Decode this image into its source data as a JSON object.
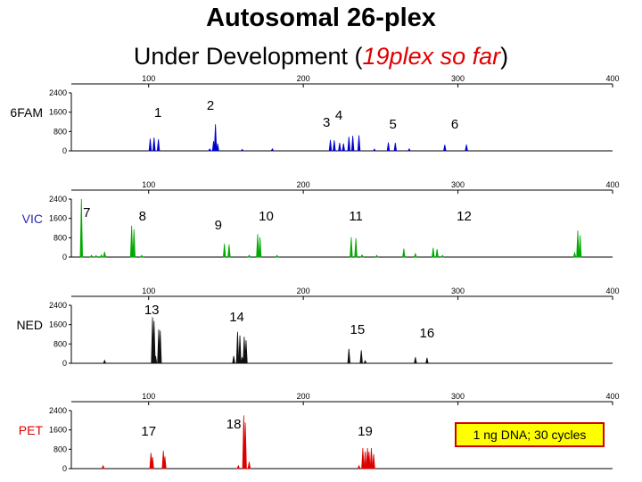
{
  "title": "Autosomal 26-plex",
  "subtitle": {
    "prefix": "Under Development (",
    "highlight": "19plex so far",
    "suffix": ")"
  },
  "note": "1 ng DNA; 30 cycles",
  "chart_data": {
    "type": "line",
    "xlim": [
      50,
      400
    ],
    "ylim": [
      0,
      2400
    ],
    "x_ticks": [
      100,
      200,
      300,
      400
    ],
    "y_ticks": [
      0,
      800,
      1600,
      2400
    ],
    "grid": false,
    "panels": [
      {
        "dye": "6FAM",
        "color": "#0000cc",
        "label_color": "#000000",
        "peaks": [
          {
            "x": 101.0,
            "h": 500
          },
          {
            "x": 103.5,
            "h": 550
          },
          {
            "x": 106.3,
            "h": 480
          },
          {
            "x": 139.5,
            "h": 80
          },
          {
            "x": 142.0,
            "h": 400
          },
          {
            "x": 143.2,
            "h": 1100
          },
          {
            "x": 144.6,
            "h": 300
          },
          {
            "x": 160.5,
            "h": 60
          },
          {
            "x": 180.0,
            "h": 80
          },
          {
            "x": 217.5,
            "h": 450
          },
          {
            "x": 220.0,
            "h": 430
          },
          {
            "x": 223.5,
            "h": 330
          },
          {
            "x": 226.0,
            "h": 300
          },
          {
            "x": 229.5,
            "h": 580
          },
          {
            "x": 232.0,
            "h": 620
          },
          {
            "x": 236.0,
            "h": 640
          },
          {
            "x": 246.0,
            "h": 70
          },
          {
            "x": 255.0,
            "h": 350
          },
          {
            "x": 259.5,
            "h": 330
          },
          {
            "x": 268.5,
            "h": 80
          },
          {
            "x": 291.5,
            "h": 250
          },
          {
            "x": 305.5,
            "h": 260
          }
        ],
        "markers": [
          {
            "label": "1",
            "x": 106
          },
          {
            "label": "2",
            "x": 140
          },
          {
            "label": "3",
            "x": 215
          },
          {
            "label": "4",
            "x": 223
          },
          {
            "label": "5",
            "x": 258
          },
          {
            "label": "6",
            "x": 298
          }
        ]
      },
      {
        "dye": "VIC",
        "color": "#00aa00",
        "label_color": "#2a2aaa",
        "peaks": [
          {
            "x": 56.5,
            "h": 2400
          },
          {
            "x": 63.0,
            "h": 70
          },
          {
            "x": 66.0,
            "h": 60
          },
          {
            "x": 69.5,
            "h": 90
          },
          {
            "x": 71.5,
            "h": 220
          },
          {
            "x": 89.0,
            "h": 1300
          },
          {
            "x": 90.5,
            "h": 1150
          },
          {
            "x": 95.5,
            "h": 70
          },
          {
            "x": 149.0,
            "h": 550
          },
          {
            "x": 152.0,
            "h": 520
          },
          {
            "x": 165.0,
            "h": 75
          },
          {
            "x": 170.5,
            "h": 950
          },
          {
            "x": 172.0,
            "h": 820
          },
          {
            "x": 183.0,
            "h": 70
          },
          {
            "x": 231.0,
            "h": 820
          },
          {
            "x": 234.0,
            "h": 780
          },
          {
            "x": 238.0,
            "h": 90
          },
          {
            "x": 247.5,
            "h": 70
          },
          {
            "x": 265.0,
            "h": 350
          },
          {
            "x": 272.5,
            "h": 140
          },
          {
            "x": 284.0,
            "h": 380
          },
          {
            "x": 286.5,
            "h": 330
          },
          {
            "x": 290.0,
            "h": 70
          },
          {
            "x": 375.5,
            "h": 180
          },
          {
            "x": 377.5,
            "h": 1100
          },
          {
            "x": 379.0,
            "h": 900
          }
        ],
        "markers": [
          {
            "label": "7",
            "x": 60
          },
          {
            "label": "8",
            "x": 96
          },
          {
            "label": "9",
            "x": 145
          },
          {
            "label": "10",
            "x": 176
          },
          {
            "label": "11",
            "x": 234
          },
          {
            "label": "12",
            "x": 304
          }
        ]
      },
      {
        "dye": "NED",
        "color": "#111111",
        "label_color": "#000000",
        "peaks": [
          {
            "x": 71.5,
            "h": 120
          },
          {
            "x": 102.5,
            "h": 1900
          },
          {
            "x": 103.5,
            "h": 1750
          },
          {
            "x": 104.5,
            "h": 300
          },
          {
            "x": 106.5,
            "h": 1400
          },
          {
            "x": 107.5,
            "h": 1350
          },
          {
            "x": 155.0,
            "h": 300
          },
          {
            "x": 157.5,
            "h": 1300
          },
          {
            "x": 159.0,
            "h": 1150
          },
          {
            "x": 160.5,
            "h": 250
          },
          {
            "x": 161.8,
            "h": 1100
          },
          {
            "x": 163.0,
            "h": 950
          },
          {
            "x": 229.5,
            "h": 600
          },
          {
            "x": 237.5,
            "h": 540
          },
          {
            "x": 240.0,
            "h": 110
          },
          {
            "x": 272.5,
            "h": 250
          },
          {
            "x": 280.0,
            "h": 230
          }
        ],
        "markers": [
          {
            "label": "13",
            "x": 102
          },
          {
            "label": "14",
            "x": 157
          },
          {
            "label": "15",
            "x": 235
          },
          {
            "label": "16",
            "x": 280
          }
        ]
      },
      {
        "dye": "PET",
        "color": "#dd0000",
        "label_color": "#dd0000",
        "peaks": [
          {
            "x": 70.5,
            "h": 120
          },
          {
            "x": 101.5,
            "h": 650
          },
          {
            "x": 102.5,
            "h": 480
          },
          {
            "x": 109.5,
            "h": 740
          },
          {
            "x": 110.5,
            "h": 500
          },
          {
            "x": 158.0,
            "h": 120
          },
          {
            "x": 161.5,
            "h": 2200
          },
          {
            "x": 162.5,
            "h": 1900
          },
          {
            "x": 165.0,
            "h": 280
          },
          {
            "x": 236.0,
            "h": 120
          },
          {
            "x": 238.5,
            "h": 850
          },
          {
            "x": 240.0,
            "h": 700
          },
          {
            "x": 241.5,
            "h": 850
          },
          {
            "x": 242.5,
            "h": 700
          },
          {
            "x": 244.0,
            "h": 850
          },
          {
            "x": 245.5,
            "h": 600
          }
        ],
        "markers": [
          {
            "label": "17",
            "x": 100
          },
          {
            "label": "18",
            "x": 155
          },
          {
            "label": "19",
            "x": 240
          }
        ]
      }
    ]
  }
}
